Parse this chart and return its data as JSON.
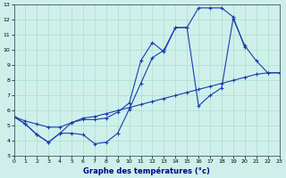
{
  "title": "Graphe des températures (°c)",
  "bg_color": "#cff0ea",
  "grid_color": "#aaddcc",
  "line_color": "#1a3cb0",
  "xlim": [
    0,
    23
  ],
  "ylim": [
    3,
    13
  ],
  "xticks": [
    0,
    1,
    2,
    3,
    4,
    5,
    6,
    7,
    8,
    9,
    10,
    11,
    12,
    13,
    14,
    15,
    16,
    17,
    18,
    19,
    20,
    21,
    22,
    23
  ],
  "yticks": [
    3,
    4,
    5,
    6,
    7,
    8,
    9,
    10,
    11,
    12,
    13
  ],
  "line1_x": [
    0,
    1,
    2,
    3,
    4,
    5,
    6,
    7,
    8,
    9,
    10,
    11,
    12,
    13,
    14,
    15,
    16,
    17,
    18,
    19,
    20,
    21,
    22,
    23
  ],
  "line1_y": [
    5.6,
    5.1,
    4.4,
    3.9,
    4.5,
    4.5,
    4.4,
    3.8,
    3.9,
    4.5,
    6.1,
    7.8,
    9.5,
    10.0,
    11.5,
    11.5,
    6.3,
    7.0,
    7.5,
    12.1,
    10.3,
    9.3,
    8.5,
    8.5
  ],
  "line2_x": [
    0,
    1,
    2,
    3,
    4,
    5,
    6,
    7,
    8,
    9,
    10,
    11,
    12,
    13,
    14,
    15,
    16,
    17,
    18,
    19,
    20
  ],
  "line2_y": [
    5.6,
    5.1,
    4.4,
    3.9,
    4.5,
    5.2,
    5.4,
    5.4,
    5.5,
    5.9,
    6.5,
    9.3,
    10.5,
    9.9,
    11.5,
    11.5,
    12.8,
    12.8,
    12.8,
    12.2,
    10.2
  ],
  "line3_x": [
    0,
    1,
    2,
    3,
    4,
    5,
    6,
    7,
    8,
    9,
    10,
    11,
    12,
    13,
    14,
    15,
    16,
    17,
    18,
    19,
    20,
    21,
    22,
    23
  ],
  "line3_y": [
    5.6,
    5.3,
    5.1,
    4.9,
    4.9,
    5.2,
    5.5,
    5.6,
    5.8,
    6.0,
    6.2,
    6.4,
    6.6,
    6.8,
    7.0,
    7.2,
    7.4,
    7.6,
    7.8,
    8.0,
    8.2,
    8.4,
    8.5,
    8.5
  ]
}
